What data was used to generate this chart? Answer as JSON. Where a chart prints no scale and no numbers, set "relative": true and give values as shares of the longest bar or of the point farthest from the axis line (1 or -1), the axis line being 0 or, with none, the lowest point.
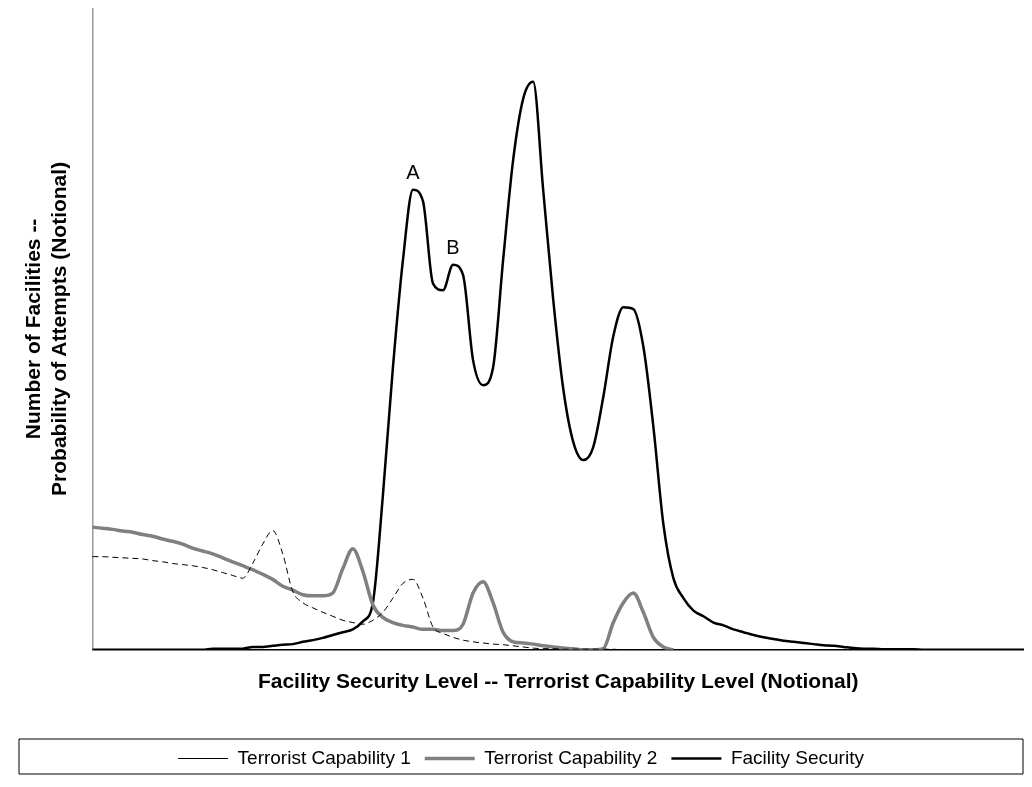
{
  "chart_data": {
    "type": "line",
    "relative": true,
    "xlabel": "Facility Security Level -- Terrorist Capability Level (Notional)",
    "ylabel": "Number of Facilities --\nProbability of Attempts (Notional)",
    "legend": "bottom",
    "grid": false,
    "marker": "none",
    "categories": [
      null,
      null,
      null,
      null,
      null,
      null,
      null,
      null,
      null,
      null,
      null,
      null,
      null,
      null,
      null,
      null,
      null,
      null,
      null,
      null,
      null,
      null,
      null,
      null,
      null,
      null,
      null,
      null,
      null,
      null,
      null,
      null,
      null,
      null,
      null,
      null,
      null,
      null,
      null,
      null,
      null,
      null,
      null,
      null,
      null,
      null,
      null,
      null,
      null,
      null,
      null,
      null,
      null,
      null,
      null,
      null,
      null,
      null,
      null,
      null,
      null,
      null,
      null,
      null,
      null,
      null,
      null,
      null,
      null,
      null,
      null,
      null,
      null,
      null,
      null,
      null,
      null,
      null,
      null,
      null,
      null,
      null,
      null,
      null,
      null,
      null,
      null,
      null,
      null,
      null,
      null,
      null,
      null,
      null
    ],
    "annotations": [
      "A",
      "B"
    ],
    "series": [
      {
        "name": "Terrorist Capability 1",
        "color": "#000000",
        "line_style": "dashed",
        "values": [
          0.164,
          0.164,
          0.163,
          0.162,
          0.161,
          0.16,
          0.157,
          0.155,
          0.152,
          0.15,
          0.148,
          0.145,
          0.141,
          0.136,
          0.131,
          0.126,
          0.152,
          0.186,
          0.21,
          0.169,
          0.103,
          0.083,
          0.074,
          0.066,
          0.059,
          0.052,
          0.048,
          0.045,
          0.052,
          0.066,
          0.091,
          0.117,
          0.124,
          0.091,
          0.04,
          0.029,
          0.022,
          0.017,
          0.014,
          0.012,
          0.01,
          0.009,
          0.007,
          0.005,
          0.003,
          0.002,
          0.002,
          0.001,
          0.001,
          0.001,
          0.001,
          0.001,
          0.001,
          0,
          0,
          null,
          null,
          null,
          null,
          null,
          null,
          null,
          null,
          null,
          null,
          null,
          null,
          null,
          null,
          null,
          null,
          null,
          null,
          null,
          null,
          null,
          null,
          null,
          null,
          null,
          null,
          null,
          null,
          null,
          null,
          null,
          null,
          null,
          null,
          null,
          null,
          null,
          null,
          null
        ]
      },
      {
        "name": "Terrorist Capability 2",
        "color": "#808080",
        "line_style": "solid",
        "values": [
          0.216,
          0.214,
          0.212,
          0.209,
          0.207,
          0.203,
          0.2,
          0.195,
          0.191,
          0.186,
          0.179,
          0.174,
          0.169,
          0.162,
          0.155,
          0.148,
          0.141,
          0.133,
          0.124,
          0.112,
          0.105,
          0.097,
          0.095,
          0.095,
          0.1,
          0.143,
          0.178,
          0.138,
          0.079,
          0.057,
          0.048,
          0.043,
          0.04,
          0.036,
          0.036,
          0.034,
          0.034,
          0.045,
          0.1,
          0.12,
          0.083,
          0.031,
          0.014,
          0.012,
          0.01,
          0.007,
          0.005,
          0.003,
          0.002,
          0,
          0,
          0.002,
          0.048,
          0.083,
          0.1,
          0.066,
          0.022,
          0.005,
          0,
          null,
          null,
          null,
          null,
          null,
          null,
          null,
          null,
          null,
          null,
          null,
          null,
          null,
          null,
          null,
          null,
          null,
          null,
          null,
          null,
          null,
          null,
          null,
          null,
          null,
          null,
          null,
          null,
          null,
          null,
          null,
          null,
          null,
          null,
          null
        ]
      },
      {
        "name": "Facility Security",
        "color": "#000000",
        "line_style": "solid",
        "values": [
          0,
          0,
          0,
          0,
          0,
          0,
          0,
          0,
          0,
          0,
          0,
          0,
          0.002,
          0.002,
          0.002,
          0.002,
          0.005,
          0.005,
          0.007,
          0.009,
          0.01,
          0.014,
          0.017,
          0.021,
          0.026,
          0.031,
          0.036,
          0.05,
          0.083,
          0.272,
          0.497,
          0.686,
          0.81,
          0.79,
          0.645,
          0.633,
          0.678,
          0.66,
          0.51,
          0.466,
          0.497,
          0.686,
          0.862,
          0.97,
          1,
          0.81,
          0.617,
          0.46,
          0.366,
          0.334,
          0.357,
          0.445,
          0.552,
          0.603,
          0.6,
          0.534,
          0.393,
          0.221,
          0.126,
          0.091,
          0.069,
          0.059,
          0.048,
          0.043,
          0.036,
          0.031,
          0.026,
          0.022,
          0.019,
          0.016,
          0.014,
          0.012,
          0.01,
          0.008,
          0.007,
          0.005,
          0.003,
          0.002,
          0.002,
          0.001,
          0.001,
          0.001,
          0.001,
          0,
          0,
          0,
          0,
          0,
          0,
          0,
          0,
          0,
          0,
          0
        ]
      }
    ]
  }
}
